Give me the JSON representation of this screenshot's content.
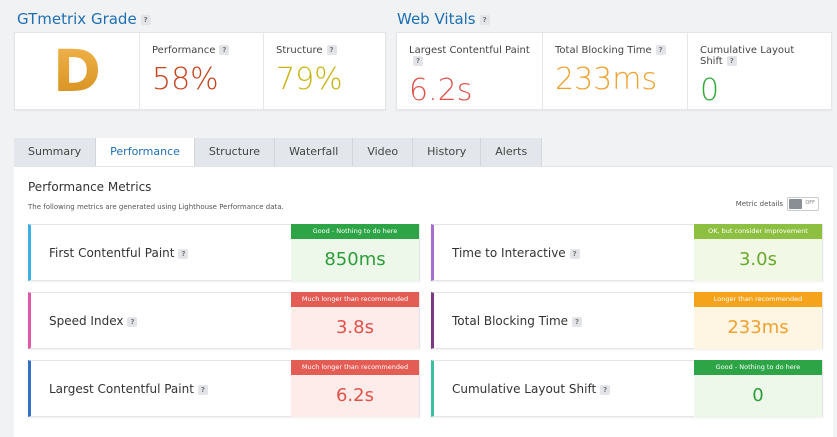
{
  "grade": {
    "title": "GTmetrix Grade",
    "letter": "D",
    "performance": {
      "label": "Performance",
      "value": "58%",
      "color": "#c4441d"
    },
    "structure": {
      "label": "Structure",
      "value": "79%",
      "color": "#c9b312"
    }
  },
  "vitals": {
    "title": "Web Vitals",
    "lcp": {
      "label": "Largest Contentful Paint",
      "value": "6.2s",
      "color": "#e0524a"
    },
    "tbt": {
      "label": "Total Blocking Time",
      "value": "233ms",
      "color": "#f0a02e"
    },
    "cls": {
      "label": "Cumulative Layout Shift",
      "value": "0",
      "color": "#34a93a"
    }
  },
  "help_glyph": "?",
  "tabs": [
    "Summary",
    "Performance",
    "Structure",
    "Waterfall",
    "Video",
    "History",
    "Alerts"
  ],
  "active_tab": "Performance",
  "panel": {
    "title": "Performance Metrics",
    "description": "The following metrics are generated using Lighthouse Performance data.",
    "metric_details_label": "Metric details",
    "toggle_state": "OFF"
  },
  "metrics": [
    {
      "name": "First Contentful Paint",
      "status": "Good - Nothing to do here",
      "value": "850ms",
      "accent": "#3ab0e4",
      "head_color": "#2da446",
      "value_color": "#2d9d3a",
      "bg": "#eef8ea"
    },
    {
      "name": "Time to Interactive",
      "status": "OK, but consider improvement",
      "value": "3.0s",
      "accent": "#a86bd0",
      "head_color": "#8dc040",
      "value_color": "#6aa82c",
      "bg": "#f1f8e6"
    },
    {
      "name": "Speed Index",
      "status": "Much longer than recommended",
      "value": "3.8s",
      "accent": "#e05aa8",
      "head_color": "#e35d55",
      "value_color": "#e0524a",
      "bg": "#fdecea"
    },
    {
      "name": "Total Blocking Time",
      "status": "Longer than recommended",
      "value": "233ms",
      "accent": "#7c3a86",
      "head_color": "#f6a31c",
      "value_color": "#f0a02e",
      "bg": "#fef5e3"
    },
    {
      "name": "Largest Contentful Paint",
      "status": "Much longer than recommended",
      "value": "6.2s",
      "accent": "#3570c6",
      "head_color": "#e35d55",
      "value_color": "#e0524a",
      "bg": "#fdecea"
    },
    {
      "name": "Cumulative Layout Shift",
      "status": "Good - Nothing to do here",
      "value": "0",
      "accent": "#3cbfa0",
      "head_color": "#2da446",
      "value_color": "#2d9d3a",
      "bg": "#eef8ea"
    }
  ]
}
